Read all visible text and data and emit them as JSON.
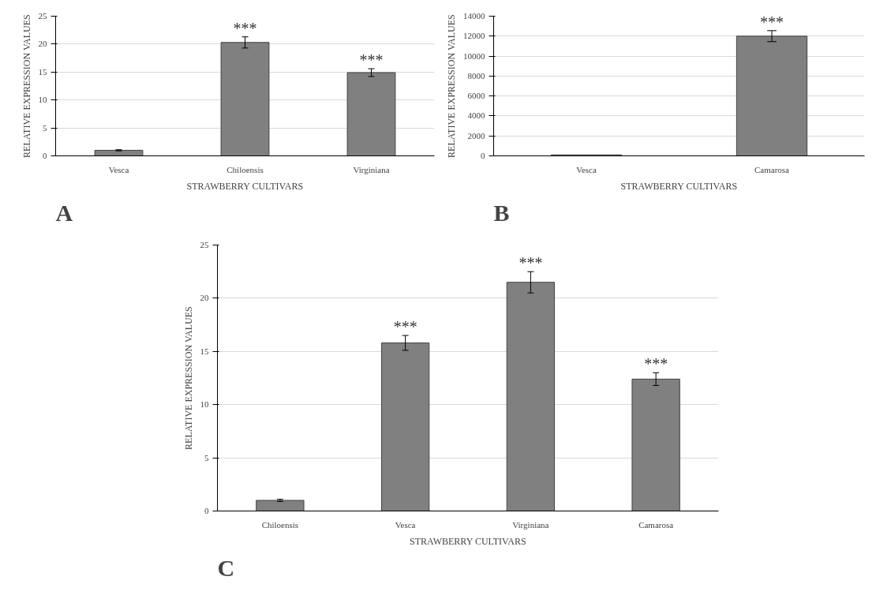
{
  "chart_data": [
    {
      "type": "bar",
      "xlabel": "STRAWBERRY CULTIVARS",
      "ylabel": "RELATIVE EXPRESSION VALUES",
      "categories": [
        "Vesca",
        "Chiloensis",
        "Virginiana"
      ],
      "series": [
        {
          "color": "#808080",
          "values": [
            1,
            20.3,
            14.9
          ],
          "errors": [
            0.1,
            1,
            0.7
          ]
        }
      ],
      "value_labels": [
        null,
        "***",
        "***"
      ],
      "ylim": [
        0,
        25
      ],
      "yticks": [
        0,
        5,
        10,
        15,
        20,
        25
      ],
      "grid": "y",
      "annotations": [
        "A"
      ]
    },
    {
      "type": "bar",
      "xlabel": "STRAWBERRY CULTIVARS",
      "ylabel": "RELATIVE EXPRESSION VALUES",
      "categories": [
        "Vesca",
        "Camarosa"
      ],
      "series": [
        {
          "color": "#808080",
          "values": [
            100,
            12000
          ],
          "errors": [
            null,
            550
          ]
        }
      ],
      "value_labels": [
        null,
        "***"
      ],
      "ylim": [
        0,
        14000
      ],
      "yticks": [
        0,
        2000,
        4000,
        6000,
        8000,
        10000,
        12000,
        14000
      ],
      "grid": "y",
      "annotations": [
        "B"
      ]
    },
    {
      "type": "bar",
      "xlabel": "STRAWBERRY CULTIVARS",
      "ylabel": "RELATIVE EXPRESSION VALUES",
      "categories": [
        "Chiloensis",
        "Vesca",
        "Virginiana",
        "Camarosa"
      ],
      "series": [
        {
          "color": "#808080",
          "values": [
            1,
            15.8,
            21.5,
            12.4
          ],
          "errors": [
            0.1,
            0.7,
            1,
            0.6
          ]
        }
      ],
      "value_labels": [
        null,
        "***",
        "***",
        "***"
      ],
      "ylim": [
        0,
        25
      ],
      "yticks": [
        0,
        5,
        10,
        15,
        20,
        25
      ],
      "grid": "y",
      "annotations": [
        "C"
      ]
    }
  ]
}
